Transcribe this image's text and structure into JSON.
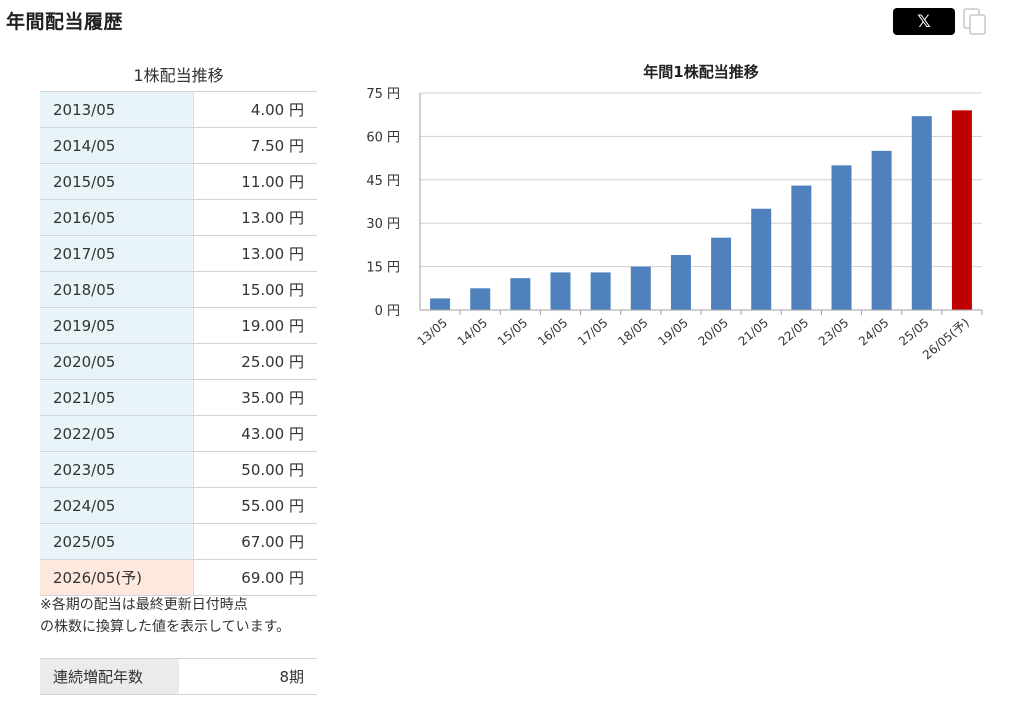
{
  "page": {
    "title": "年間配当履歴",
    "share_x_label": "𝕏",
    "share_icon": "x-logo-icon",
    "copy_icon": "copy-icon"
  },
  "table": {
    "caption": "1株配当推移",
    "rows": [
      {
        "year": "2013/05",
        "value": "4.00 円"
      },
      {
        "year": "2014/05",
        "value": "7.50 円"
      },
      {
        "year": "2015/05",
        "value": "11.00 円"
      },
      {
        "year": "2016/05",
        "value": "13.00 円"
      },
      {
        "year": "2017/05",
        "value": "13.00 円"
      },
      {
        "year": "2018/05",
        "value": "15.00 円"
      },
      {
        "year": "2019/05",
        "value": "19.00 円"
      },
      {
        "year": "2020/05",
        "value": "25.00 円"
      },
      {
        "year": "2021/05",
        "value": "35.00 円"
      },
      {
        "year": "2022/05",
        "value": "43.00 円"
      },
      {
        "year": "2023/05",
        "value": "50.00 円"
      },
      {
        "year": "2024/05",
        "value": "55.00 円"
      },
      {
        "year": "2025/05",
        "value": "67.00 円"
      },
      {
        "year": "2026/05(予)",
        "value": "69.00 円"
      }
    ],
    "note_line1": "※各期の配当は最終更新日付時点",
    "note_line2": "の株数に換算した値を表示しています。"
  },
  "streak": {
    "label": "連続増配年数",
    "value": "8期"
  },
  "chart_data": {
    "type": "bar",
    "title": "年間1株配当推移",
    "categories": [
      "13/05",
      "14/05",
      "15/05",
      "16/05",
      "17/05",
      "18/05",
      "19/05",
      "20/05",
      "21/05",
      "22/05",
      "23/05",
      "24/05",
      "25/05",
      "26/05(予)"
    ],
    "values": [
      4,
      7.5,
      11,
      13,
      13,
      15,
      19,
      25,
      35,
      43,
      50,
      55,
      67,
      69
    ],
    "ylim": [
      0,
      75
    ],
    "yticks": [
      "0 円",
      "15 円",
      "30 円",
      "45 円",
      "60 円",
      "75 円"
    ],
    "ytick_values": [
      0,
      15,
      30,
      45,
      60,
      75
    ],
    "grid": true,
    "colors": {
      "actual": "#4f81bd",
      "forecast": "#c00000"
    },
    "forecast_categories": [
      "26/05(予)"
    ]
  }
}
